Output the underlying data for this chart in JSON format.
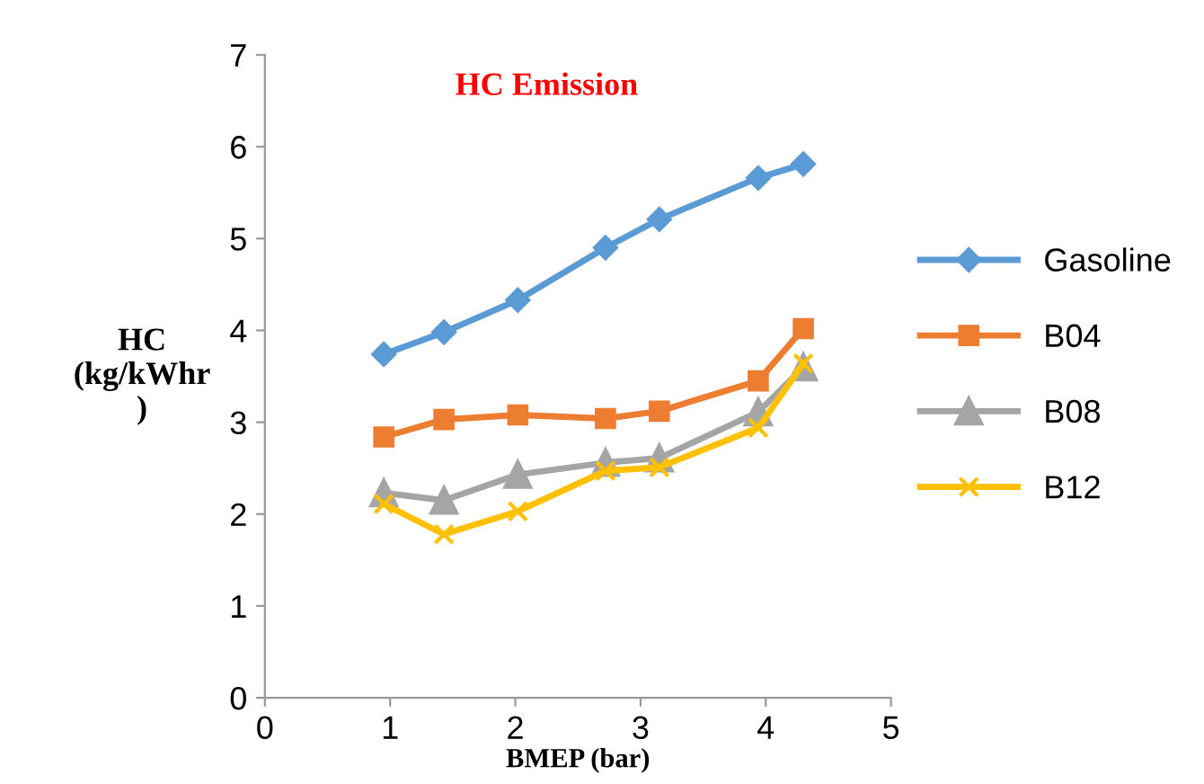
{
  "chart_data": {
    "type": "line",
    "title": "HC Emission",
    "xlabel": "BMEP (bar)",
    "ylabel": "HC\n(kg/kWhr\n)",
    "x": [
      0.95,
      1.43,
      2.02,
      2.72,
      3.15,
      3.94,
      4.3
    ],
    "series": [
      {
        "name": "Gasoline",
        "color": "#5b9bd5",
        "marker": "diamond",
        "values": [
          3.74,
          3.98,
          4.33,
          4.9,
          5.21,
          5.66,
          5.81
        ]
      },
      {
        "name": "B04",
        "color": "#ed7d31",
        "marker": "square",
        "values": [
          2.84,
          3.03,
          3.08,
          3.04,
          3.12,
          3.45,
          4.02
        ]
      },
      {
        "name": "B08",
        "color": "#a5a5a5",
        "marker": "triangle",
        "values": [
          2.23,
          2.15,
          2.43,
          2.56,
          2.61,
          3.11,
          3.6
        ]
      },
      {
        "name": "B12",
        "color": "#ffc000",
        "marker": "cross",
        "values": [
          2.11,
          1.78,
          2.03,
          2.47,
          2.51,
          2.94,
          3.64
        ]
      }
    ],
    "xlim": [
      0,
      5
    ],
    "xticks": [
      0,
      1,
      2,
      3,
      4,
      5
    ],
    "ylim": [
      0,
      7
    ],
    "yticks": [
      0,
      1,
      2,
      3,
      4,
      5,
      6,
      7
    ],
    "grid": false,
    "legend": "right",
    "line_style": "solid"
  }
}
